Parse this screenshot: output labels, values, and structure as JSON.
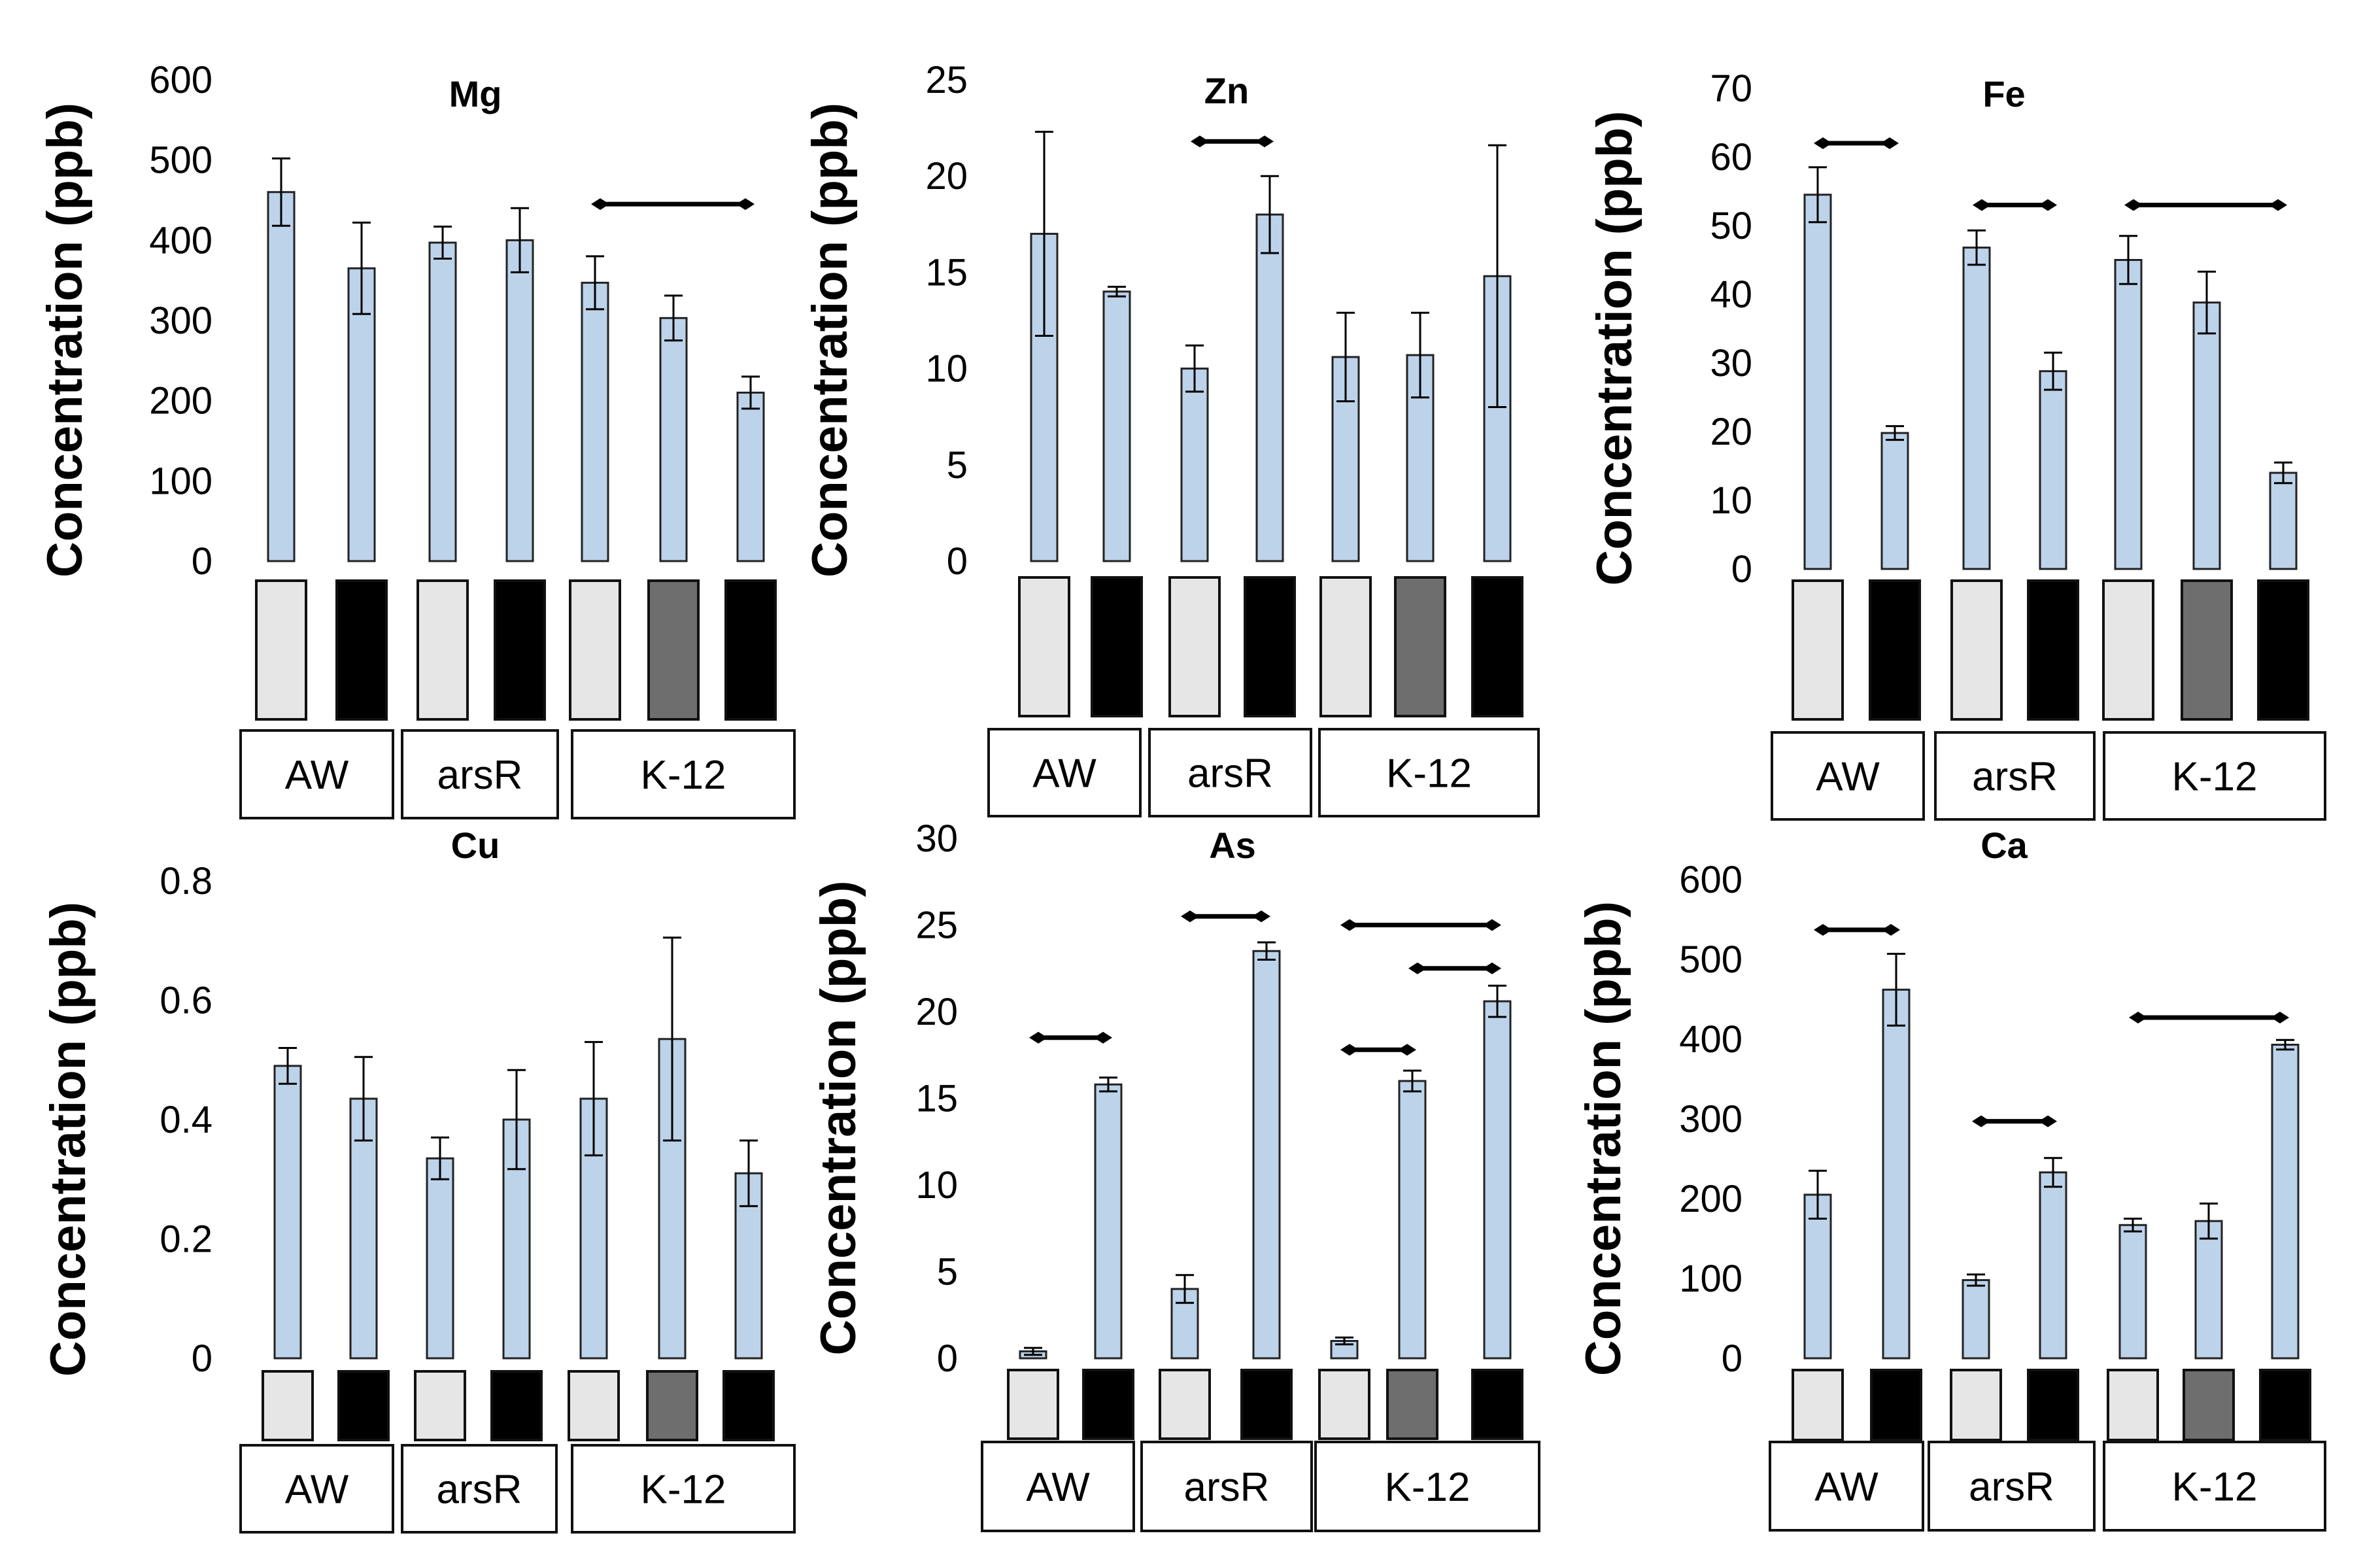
{
  "colors": {
    "bar_fill": "#bdd3ea",
    "bar_stroke": "#222222",
    "light_swatch": "#e6e6e6",
    "grey_swatch": "#6e6e6e",
    "dark_swatch": "#000000",
    "text": "#000000"
  },
  "chart_data": [
    {
      "type": "bar",
      "title": "Mg",
      "ylabel": "Concentration (ppb)",
      "xlabel": "",
      "ylim": [
        0,
        600
      ],
      "yticks": [
        "0",
        "100",
        "200",
        "300",
        "400",
        "500",
        "600"
      ],
      "categories": [
        "AW",
        "AW",
        "arsR",
        "arsR",
        "K-12",
        "K-12",
        "K-12"
      ],
      "values": [
        460,
        365,
        397,
        400,
        347,
        303,
        210
      ],
      "errors": [
        42,
        57,
        20,
        40,
        33,
        28,
        20
      ],
      "swatches": [
        "light",
        "dark",
        "light",
        "dark",
        "light",
        "grey",
        "dark"
      ],
      "groups": [
        {
          "label": "AW",
          "bars": [
            0,
            1
          ]
        },
        {
          "label": "arsR",
          "bars": [
            2,
            3
          ]
        },
        {
          "label": "K-12",
          "bars": [
            4,
            6
          ]
        }
      ],
      "brackets": [
        {
          "from": 4,
          "to": 6,
          "y": 445
        }
      ]
    },
    {
      "type": "bar",
      "title": "Zn",
      "ylabel": "Concentration (ppb)",
      "xlabel": "",
      "ylim": [
        0,
        25
      ],
      "yticks": [
        "0",
        "5",
        "10",
        "15",
        "20",
        "25"
      ],
      "categories": [
        "AW",
        "AW",
        "arsR",
        "arsR",
        "K-12",
        "K-12",
        "K-12"
      ],
      "values": [
        17.0,
        14.0,
        10.0,
        18.0,
        10.6,
        10.7,
        14.8
      ],
      "errors": [
        5.3,
        0.25,
        1.2,
        2.0,
        2.3,
        2.2,
        6.8
      ],
      "swatches": [
        "light",
        "dark",
        "light",
        "dark",
        "light",
        "grey",
        "dark"
      ],
      "groups": [
        {
          "label": "AW",
          "bars": [
            0,
            1
          ]
        },
        {
          "label": "arsR",
          "bars": [
            2,
            3
          ]
        },
        {
          "label": "K-12",
          "bars": [
            4,
            6
          ]
        }
      ],
      "brackets": [
        {
          "from": 2,
          "to": 3,
          "y": 21.8
        }
      ]
    },
    {
      "type": "bar",
      "title": "Fe",
      "ylabel": "Concentration (ppb)",
      "xlabel": "",
      "ylim": [
        0,
        70
      ],
      "yticks": [
        "0",
        "10",
        "20",
        "30",
        "40",
        "50",
        "60",
        "70"
      ],
      "categories": [
        "AW",
        "AW",
        "arsR",
        "arsR",
        "K-12",
        "K-12",
        "K-12"
      ],
      "values": [
        54.5,
        19.8,
        46.8,
        28.8,
        45.0,
        38.8,
        14.0
      ],
      "errors": [
        4.0,
        1.0,
        2.5,
        2.7,
        3.5,
        4.5,
        1.5
      ],
      "swatches": [
        "light",
        "dark",
        "light",
        "dark",
        "light",
        "grey",
        "dark"
      ],
      "groups": [
        {
          "label": "AW",
          "bars": [
            0,
            1
          ]
        },
        {
          "label": "arsR",
          "bars": [
            2,
            3
          ]
        },
        {
          "label": "K-12",
          "bars": [
            4,
            6
          ]
        }
      ],
      "brackets": [
        {
          "from": 0,
          "to": 1,
          "y": 62
        },
        {
          "from": 2,
          "to": 3,
          "y": 53
        },
        {
          "from": 4,
          "to": 6,
          "y": 53
        }
      ]
    },
    {
      "type": "bar",
      "title": "Cu",
      "ylabel": "Concentration (ppb)",
      "xlabel": "",
      "ylim": [
        0,
        0.8
      ],
      "yticks": [
        "0",
        "0.2",
        "0.4",
        "0.6",
        "0.8"
      ],
      "categories": [
        "AW",
        "AW",
        "arsR",
        "arsR",
        "K-12",
        "K-12",
        "K-12"
      ],
      "values": [
        0.49,
        0.435,
        0.335,
        0.4,
        0.435,
        0.535,
        0.31
      ],
      "errors": [
        0.03,
        0.07,
        0.035,
        0.083,
        0.095,
        0.17,
        0.055
      ],
      "swatches": [
        "light",
        "dark",
        "light",
        "dark",
        "light",
        "grey",
        "dark"
      ],
      "groups": [
        {
          "label": "AW",
          "bars": [
            0,
            1
          ]
        },
        {
          "label": "arsR",
          "bars": [
            2,
            3
          ]
        },
        {
          "label": "K-12",
          "bars": [
            4,
            6
          ]
        }
      ],
      "brackets": []
    },
    {
      "type": "bar",
      "title": "As",
      "ylabel": "Concentration (ppb)",
      "xlabel": "",
      "ylim": [
        0,
        30
      ],
      "yticks": [
        "0",
        "5",
        "10",
        "15",
        "20",
        "25",
        "30"
      ],
      "categories": [
        "AW",
        "AW",
        "arsR",
        "arsR",
        "K-12",
        "K-12",
        "K-12"
      ],
      "values": [
        0.4,
        15.8,
        4.0,
        23.5,
        1.0,
        16.0,
        20.6
      ],
      "errors": [
        0.2,
        0.4,
        0.8,
        0.5,
        0.2,
        0.6,
        0.9
      ],
      "swatches": [
        "light",
        "dark",
        "light",
        "dark",
        "light",
        "grey",
        "dark"
      ],
      "groups": [
        {
          "label": "AW",
          "bars": [
            0,
            1
          ]
        },
        {
          "label": "arsR",
          "bars": [
            2,
            3
          ]
        },
        {
          "label": "K-12",
          "bars": [
            4,
            6
          ]
        }
      ],
      "brackets": [
        {
          "from": 0,
          "to": 1,
          "y": 18.5
        },
        {
          "from": 2,
          "to": 3,
          "y": 25.5
        },
        {
          "from": 4,
          "to": 6,
          "y": 25.0
        },
        {
          "from": 5,
          "to": 6,
          "y": 22.5
        },
        {
          "from": 4,
          "to": 5,
          "y": 17.8
        }
      ]
    },
    {
      "type": "bar",
      "title": "Ca",
      "ylabel": "Concentration (ppb)",
      "xlabel": "",
      "ylim": [
        0,
        600
      ],
      "yticks": [
        "0",
        "100",
        "200",
        "300",
        "400",
        "500",
        "600"
      ],
      "categories": [
        "AW",
        "AW",
        "arsR",
        "arsR",
        "K-12",
        "K-12",
        "K-12"
      ],
      "values": [
        205,
        462,
        98,
        233,
        167,
        172,
        393
      ],
      "errors": [
        30,
        45,
        7,
        18,
        8,
        22,
        6
      ],
      "swatches": [
        "light",
        "dark",
        "light",
        "dark",
        "light",
        "grey",
        "dark"
      ],
      "groups": [
        {
          "label": "AW",
          "bars": [
            0,
            1
          ]
        },
        {
          "label": "arsR",
          "bars": [
            2,
            3
          ]
        },
        {
          "label": "K-12",
          "bars": [
            4,
            6
          ]
        }
      ],
      "brackets": [
        {
          "from": 0,
          "to": 1,
          "y": 537
        },
        {
          "from": 2,
          "to": 3,
          "y": 297
        },
        {
          "from": 4,
          "to": 6,
          "y": 427
        }
      ]
    }
  ]
}
